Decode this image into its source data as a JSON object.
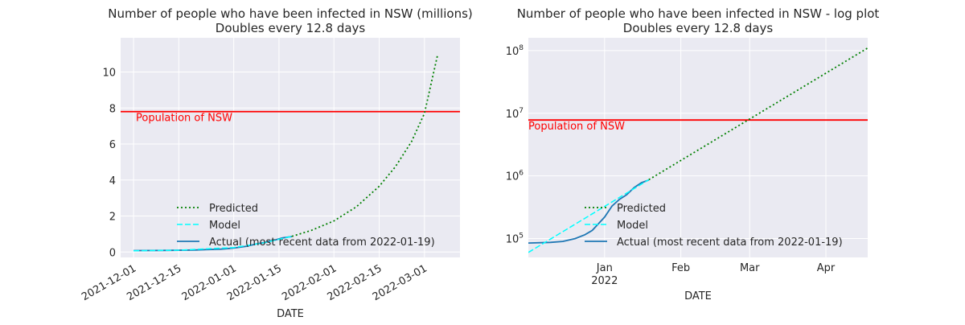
{
  "chart_data": [
    {
      "type": "line",
      "title": "Number of people who have been infected in NSW (millions)",
      "subtitle": "Doubles every 12.8 days",
      "xlabel": "DATE",
      "ylabel": "",
      "x_ticks": [
        "2021-12-01",
        "2021-12-15",
        "2022-01-01",
        "2022-01-15",
        "2022-02-01",
        "2022-02-15",
        "2022-03-01"
      ],
      "y_ticks": [
        "0",
        "2",
        "4",
        "6",
        "8",
        "10"
      ],
      "xlim": [
        "2021-11-27",
        "2022-03-12"
      ],
      "ylim": [
        -0.3,
        11.9
      ],
      "grid": true,
      "legend_placement": "lower-center",
      "hline": {
        "y": 7.8,
        "label": "Population of NSW",
        "color": "#ff0000"
      },
      "series": [
        {
          "name": "Predicted",
          "style": "dotted",
          "color": "#008000",
          "x": [
            "2022-01-19",
            "2022-01-25",
            "2022-02-01",
            "2022-02-08",
            "2022-02-15",
            "2022-02-20",
            "2022-02-25",
            "2022-03-01",
            "2022-03-05"
          ],
          "y": [
            0.87,
            1.2,
            1.73,
            2.52,
            3.65,
            4.73,
            6.13,
            7.7,
            10.9
          ]
        },
        {
          "name": "Model",
          "style": "dashed",
          "color": "#00ffff",
          "x": [
            "2021-12-01",
            "2021-12-15",
            "2022-01-01",
            "2022-01-10",
            "2022-01-19"
          ],
          "y": [
            0.07,
            0.1,
            0.25,
            0.5,
            0.87
          ]
        },
        {
          "name": "Actual (most recent data from 2022-01-19)",
          "style": "solid",
          "color": "#1f77b4",
          "x": [
            "2021-12-01",
            "2021-12-10",
            "2021-12-20",
            "2021-12-28",
            "2022-01-01",
            "2022-01-05",
            "2022-01-08",
            "2022-01-11",
            "2022-01-14",
            "2022-01-16",
            "2022-01-19"
          ],
          "y": [
            0.08,
            0.09,
            0.11,
            0.16,
            0.22,
            0.32,
            0.45,
            0.55,
            0.68,
            0.78,
            0.86
          ]
        }
      ]
    },
    {
      "type": "line",
      "title": "Number of people who have been infected in NSW - log plot",
      "subtitle": "Doubles every 12.8 days",
      "xlabel": "DATE",
      "ylabel": "",
      "x_scale": "date",
      "y_scale": "log",
      "x_ticks": [
        {
          "date": "2022-01-01",
          "label": "Jan",
          "sublabel": "2022"
        },
        {
          "date": "2022-02-01",
          "label": "Feb"
        },
        {
          "date": "2022-03-01",
          "label": "Mar"
        },
        {
          "date": "2022-04-01",
          "label": "Apr"
        }
      ],
      "y_ticks": [
        {
          "value": 100000,
          "base": "10",
          "exp": "5"
        },
        {
          "value": 1000000,
          "base": "10",
          "exp": "6"
        },
        {
          "value": 10000000,
          "base": "10",
          "exp": "7"
        },
        {
          "value": 100000000,
          "base": "10",
          "exp": "8"
        }
      ],
      "xlim": [
        "2021-12-01",
        "2022-04-18"
      ],
      "ylim": [
        50000,
        160000000
      ],
      "grid": true,
      "legend_placement": "lower-center",
      "hline": {
        "y": 7800000,
        "label": "Population of NSW",
        "color": "#ff0000"
      },
      "series": [
        {
          "name": "Predicted",
          "style": "dotted",
          "color": "#008000",
          "x": [
            "2022-01-19",
            "2022-04-18"
          ],
          "y": [
            870000,
            110000000
          ]
        },
        {
          "name": "Model",
          "style": "dashed",
          "color": "#00ffff",
          "x": [
            "2021-12-01",
            "2022-01-19"
          ],
          "y": [
            60000,
            870000
          ]
        },
        {
          "name": "Actual (most recent data from 2022-01-19)",
          "style": "solid",
          "color": "#1f77b4",
          "x": [
            "2021-12-01",
            "2021-12-10",
            "2021-12-15",
            "2021-12-20",
            "2021-12-24",
            "2021-12-27",
            "2022-01-01",
            "2022-01-04",
            "2022-01-07",
            "2022-01-10",
            "2022-01-13",
            "2022-01-16",
            "2022-01-19"
          ],
          "y": [
            85000,
            87000,
            90000,
            100000,
            115000,
            135000,
            220000,
            330000,
            420000,
            500000,
            650000,
            780000,
            860000
          ]
        }
      ]
    }
  ]
}
